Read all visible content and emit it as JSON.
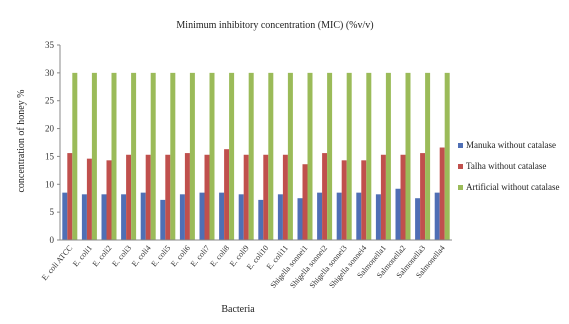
{
  "chart_data": {
    "type": "bar",
    "title": "Minimum inhibitory concentration (MIC) (%v/v)",
    "xlabel": "Bacteria",
    "ylabel": "concentration of honey %",
    "ylim": [
      0,
      35
    ],
    "yticks": [
      0,
      5,
      10,
      15,
      20,
      25,
      30,
      35
    ],
    "grid": false,
    "legend_position": "right",
    "categories": [
      "E. coli ATCC",
      "E. coli1",
      "E. coli2",
      "E. coli3",
      "E. coli4",
      "E. coli5",
      "E. coli6",
      "E. coli7",
      "E. coli8",
      "E. coli9",
      "E. coli10",
      "E. coli11",
      "Shigella sonnei1",
      "Shigella sonnei2",
      "Shigella sonnei3",
      "Shigella sonnei4",
      "Salmonella1",
      "Salmonella2",
      "Salmonella3",
      "Salmonella4"
    ],
    "series": [
      {
        "name": "Manuka without catalase",
        "color": "#4f6fb5",
        "values": [
          8.5,
          8.2,
          8.2,
          8.2,
          8.5,
          7.2,
          8.2,
          8.5,
          8.5,
          8.2,
          7.2,
          8.2,
          7.5,
          8.5,
          8.5,
          8.5,
          8.2,
          9.2,
          7.5,
          8.5
        ]
      },
      {
        "name": "Talha without catalase",
        "color": "#c0504d",
        "values": [
          15.6,
          14.6,
          14.3,
          15.3,
          15.3,
          15.3,
          15.6,
          15.3,
          16.3,
          15.3,
          15.3,
          15.3,
          13.6,
          15.6,
          14.3,
          14.3,
          15.3,
          15.3,
          15.6,
          16.6
        ]
      },
      {
        "name": "Artificial without catalase",
        "color": "#9bbb59",
        "values": [
          30,
          30,
          30,
          30,
          30,
          30,
          30,
          30,
          30,
          30,
          30,
          30,
          30,
          30,
          30,
          30,
          30,
          30,
          30,
          30
        ]
      }
    ]
  }
}
